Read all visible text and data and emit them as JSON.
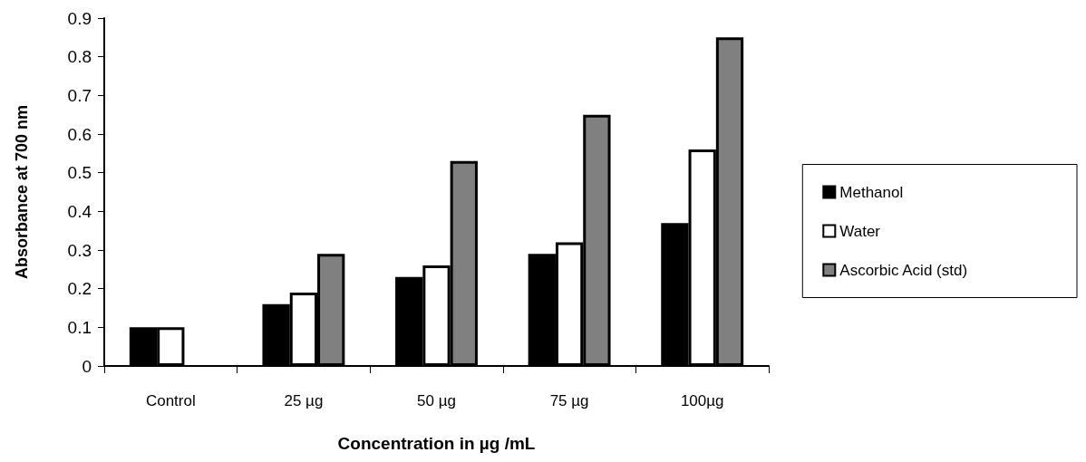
{
  "chart_data": {
    "type": "bar",
    "xlabel": "Concentration in µg /mL",
    "ylabel": "Absorbance at 700 nm",
    "categories": [
      "Control",
      "25 µg",
      "50 µg",
      "75 µg",
      "100µg"
    ],
    "series": [
      {
        "name": "Methanol",
        "color": "#000000",
        "values": [
          0.1,
          0.16,
          0.23,
          0.29,
          0.37
        ]
      },
      {
        "name": "Water",
        "color": "#ffffff",
        "values": [
          0.1,
          0.19,
          0.26,
          0.32,
          0.56
        ]
      },
      {
        "name": "Ascorbic Acid (std)",
        "color": "#808080",
        "values": [
          null,
          0.29,
          0.53,
          0.65,
          0.85
        ]
      }
    ],
    "ylim": [
      0,
      0.9
    ],
    "yticks": [
      0,
      0.1,
      0.2,
      0.3,
      0.4,
      0.5,
      0.6,
      0.7,
      0.8,
      0.9
    ],
    "grid": false,
    "legend": "right"
  }
}
